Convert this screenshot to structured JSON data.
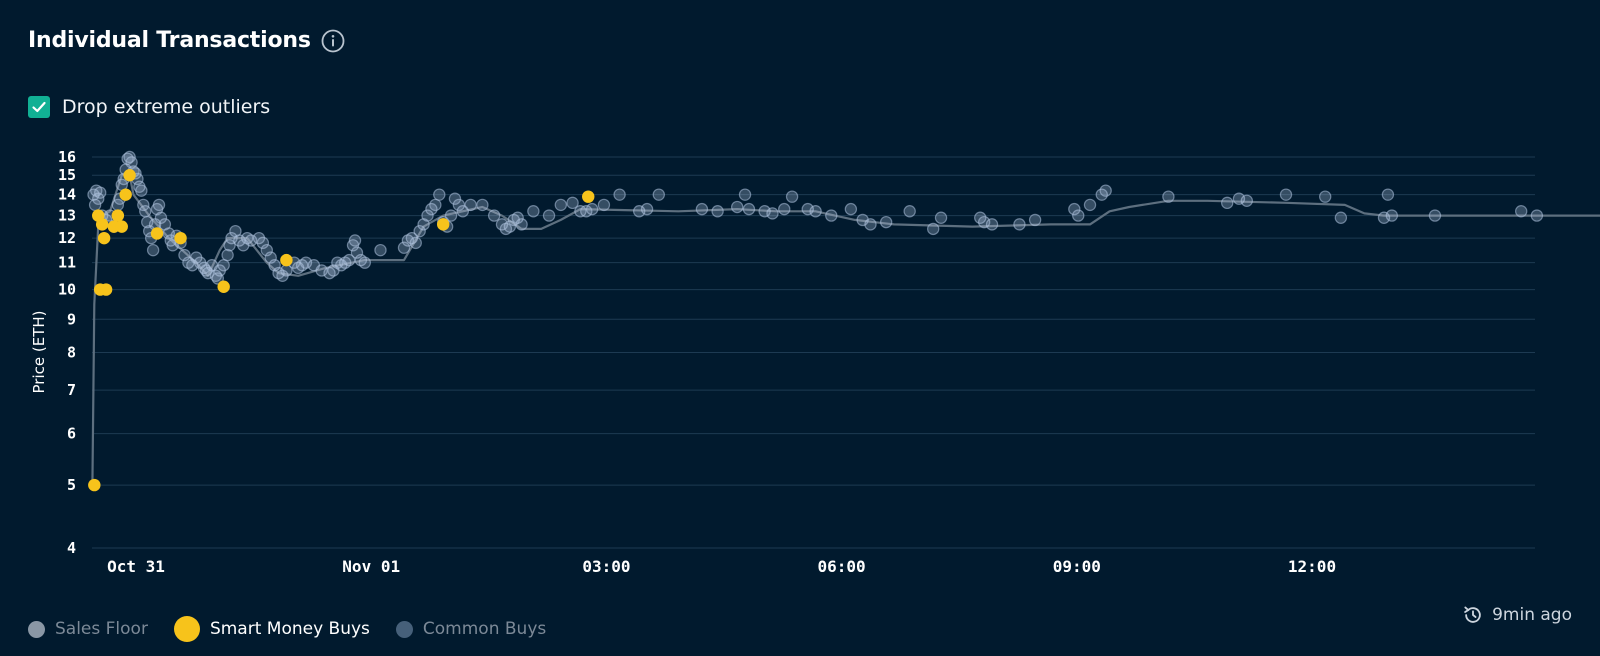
{
  "header": {
    "title": "Individual Transactions",
    "info_icon": "info-icon"
  },
  "options": {
    "drop_outliers_label": "Drop extreme outliers",
    "drop_outliers_checked": true
  },
  "legend": [
    {
      "label": "Sales Floor",
      "color": "#8a97a5",
      "state": "inactive"
    },
    {
      "label": "Smart Money Buys",
      "color": "#f7c31b",
      "state": "active"
    },
    {
      "label": "Common Buys",
      "color": "#46607a",
      "state": "inactive"
    }
  ],
  "status": {
    "updated_text": "9min ago",
    "icon": "history-clock-icon"
  },
  "colors": {
    "background": "#011a2e",
    "grid": "#1d3a52",
    "floor_line": "#5d6f7f",
    "common_fill": "#aec2de",
    "smart": "#f7c31b",
    "checkbox": "#11b094"
  },
  "chart_data": {
    "type": "scatter",
    "ylabel": "Price (ETH)",
    "y_scale": "log",
    "ylim": [
      4,
      16
    ],
    "y_ticks": [
      4,
      5,
      6,
      7,
      8,
      9,
      10,
      11,
      12,
      13,
      14,
      15,
      16
    ],
    "x_unit": "hours since Oct 31 00:00",
    "xlim": [
      -0.11,
      38.6
    ],
    "x_ticks": [
      {
        "label": "Oct 31",
        "x": 0
      },
      {
        "label": "Nov 01",
        "x": 6
      },
      {
        "label": "03:00",
        "x": 12
      },
      {
        "label": "06:00",
        "x": 18
      },
      {
        "label": "09:00",
        "x": 24
      },
      {
        "label": "12:00",
        "x": 30
      }
    ],
    "series": [
      {
        "name": "Sales Floor",
        "kind": "line",
        "points": [
          [
            -0.45,
            5
          ],
          [
            -0.4,
            9.5
          ],
          [
            -0.3,
            12.5
          ],
          [
            -0.2,
            13
          ],
          [
            0,
            13.2
          ],
          [
            0.3,
            15
          ],
          [
            0.5,
            15
          ],
          [
            0.6,
            14
          ],
          [
            1,
            13
          ],
          [
            1.5,
            12
          ],
          [
            2.2,
            11
          ],
          [
            2.5,
            10.5
          ],
          [
            2.8,
            11.5
          ],
          [
            3,
            12
          ],
          [
            3.5,
            12
          ],
          [
            4,
            11
          ],
          [
            4.3,
            10.6
          ],
          [
            4.8,
            10.5
          ],
          [
            5.5,
            10.8
          ],
          [
            6.5,
            11.1
          ],
          [
            7.5,
            11.1
          ],
          [
            8,
            12.5
          ],
          [
            8.5,
            13
          ],
          [
            9.5,
            13.4
          ],
          [
            10,
            13
          ],
          [
            10.5,
            12.4
          ],
          [
            11,
            12.4
          ],
          [
            11.5,
            12.8
          ],
          [
            12,
            13.3
          ],
          [
            14.5,
            13.2
          ],
          [
            16,
            13.3
          ],
          [
            17,
            13.2
          ],
          [
            18,
            13.2
          ],
          [
            19,
            12.8
          ],
          [
            20,
            12.6
          ],
          [
            22,
            12.5
          ],
          [
            24,
            12.6
          ],
          [
            25,
            12.6
          ],
          [
            25.5,
            13.2
          ],
          [
            26,
            13.4
          ],
          [
            27,
            13.7
          ],
          [
            28,
            13.7
          ],
          [
            30,
            13.6
          ],
          [
            31.5,
            13.5
          ],
          [
            32,
            13.1
          ],
          [
            32.5,
            13
          ],
          [
            38.6,
            13
          ]
        ]
      },
      {
        "name": "Common Buys",
        "kind": "scatter",
        "points": [
          [
            -0.42,
            14
          ],
          [
            -0.38,
            13.5
          ],
          [
            -0.35,
            14.2
          ],
          [
            -0.3,
            13.8
          ],
          [
            -0.25,
            14.1
          ],
          [
            -0.2,
            13
          ],
          [
            -0.1,
            12.8
          ],
          [
            0,
            13
          ],
          [
            0.1,
            12.5
          ],
          [
            0.2,
            13.5
          ],
          [
            0.25,
            13.8
          ],
          [
            0.3,
            14.5
          ],
          [
            0.35,
            14.8
          ],
          [
            0.4,
            15.3
          ],
          [
            0.45,
            15.9
          ],
          [
            0.5,
            16
          ],
          [
            0.55,
            15.7
          ],
          [
            0.6,
            15.2
          ],
          [
            0.65,
            15.1
          ],
          [
            0.7,
            14.8
          ],
          [
            0.75,
            14.4
          ],
          [
            0.8,
            14.2
          ],
          [
            0.85,
            13.5
          ],
          [
            0.9,
            13.2
          ],
          [
            0.95,
            12.7
          ],
          [
            1,
            12.3
          ],
          [
            1.05,
            12
          ],
          [
            1.1,
            11.5
          ],
          [
            1.15,
            12.6
          ],
          [
            1.2,
            13.3
          ],
          [
            1.25,
            13.5
          ],
          [
            1.3,
            12.9
          ],
          [
            1.4,
            12.6
          ],
          [
            1.5,
            12.2
          ],
          [
            1.55,
            11.9
          ],
          [
            1.6,
            11.7
          ],
          [
            1.7,
            12.1
          ],
          [
            1.8,
            11.8
          ],
          [
            1.9,
            11.3
          ],
          [
            2,
            11
          ],
          [
            2.1,
            10.9
          ],
          [
            2.2,
            11.2
          ],
          [
            2.3,
            11
          ],
          [
            2.4,
            10.8
          ],
          [
            2.45,
            10.7
          ],
          [
            2.5,
            10.6
          ],
          [
            2.6,
            10.9
          ],
          [
            2.7,
            10.5
          ],
          [
            2.75,
            10.4
          ],
          [
            2.8,
            10.7
          ],
          [
            2.9,
            10.9
          ],
          [
            3,
            11.3
          ],
          [
            3.05,
            11.7
          ],
          [
            3.1,
            12
          ],
          [
            3.2,
            12.3
          ],
          [
            3.3,
            11.9
          ],
          [
            3.4,
            11.7
          ],
          [
            3.5,
            12
          ],
          [
            3.6,
            11.9
          ],
          [
            3.8,
            12
          ],
          [
            3.9,
            11.8
          ],
          [
            4,
            11.5
          ],
          [
            4.1,
            11.2
          ],
          [
            4.2,
            10.9
          ],
          [
            4.3,
            10.6
          ],
          [
            4.4,
            10.5
          ],
          [
            4.5,
            10.7
          ],
          [
            4.7,
            11
          ],
          [
            4.8,
            10.8
          ],
          [
            4.9,
            10.9
          ],
          [
            5,
            11
          ],
          [
            5.2,
            10.9
          ],
          [
            5.4,
            10.7
          ],
          [
            5.6,
            10.6
          ],
          [
            5.7,
            10.7
          ],
          [
            5.8,
            11
          ],
          [
            5.9,
            10.9
          ],
          [
            6,
            11
          ],
          [
            6.1,
            11.1
          ],
          [
            6.2,
            11.7
          ],
          [
            6.25,
            11.9
          ],
          [
            6.3,
            11.4
          ],
          [
            6.4,
            11.1
          ],
          [
            6.5,
            11
          ],
          [
            6.9,
            11.5
          ],
          [
            7.5,
            11.6
          ],
          [
            7.6,
            11.9
          ],
          [
            7.7,
            12
          ],
          [
            7.8,
            11.8
          ],
          [
            7.9,
            12.3
          ],
          [
            8,
            12.6
          ],
          [
            8.1,
            13
          ],
          [
            8.2,
            13.3
          ],
          [
            8.3,
            13.5
          ],
          [
            8.4,
            14
          ],
          [
            8.5,
            12.7
          ],
          [
            8.6,
            12.5
          ],
          [
            8.7,
            13
          ],
          [
            8.8,
            13.8
          ],
          [
            8.9,
            13.5
          ],
          [
            9,
            13.2
          ],
          [
            9.2,
            13.5
          ],
          [
            9.5,
            13.5
          ],
          [
            9.8,
            13
          ],
          [
            10,
            12.6
          ],
          [
            10.1,
            12.4
          ],
          [
            10.2,
            12.5
          ],
          [
            10.3,
            12.8
          ],
          [
            10.4,
            12.9
          ],
          [
            10.5,
            12.6
          ],
          [
            10.8,
            13.2
          ],
          [
            11.2,
            13
          ],
          [
            11.5,
            13.5
          ],
          [
            11.8,
            13.6
          ],
          [
            12,
            13.2
          ],
          [
            12.15,
            13.2
          ],
          [
            12.3,
            13.3
          ],
          [
            12.6,
            13.5
          ],
          [
            13,
            14
          ],
          [
            13.5,
            13.2
          ],
          [
            13.7,
            13.3
          ],
          [
            14,
            14
          ],
          [
            15.1,
            13.3
          ],
          [
            15.5,
            13.2
          ],
          [
            16,
            13.4
          ],
          [
            16.2,
            14
          ],
          [
            16.3,
            13.3
          ],
          [
            16.7,
            13.2
          ],
          [
            16.9,
            13.1
          ],
          [
            17.2,
            13.3
          ],
          [
            17.4,
            13.9
          ],
          [
            17.8,
            13.3
          ],
          [
            18,
            13.2
          ],
          [
            18.4,
            13
          ],
          [
            18.9,
            13.3
          ],
          [
            19.2,
            12.8
          ],
          [
            19.4,
            12.6
          ],
          [
            19.8,
            12.7
          ],
          [
            20.4,
            13.2
          ],
          [
            21,
            12.4
          ],
          [
            21.2,
            12.9
          ],
          [
            22.2,
            12.9
          ],
          [
            22.3,
            12.7
          ],
          [
            22.5,
            12.6
          ],
          [
            23.2,
            12.6
          ],
          [
            23.6,
            12.8
          ],
          [
            24.6,
            13.3
          ],
          [
            24.7,
            13
          ],
          [
            25,
            13.5
          ],
          [
            25.3,
            14
          ],
          [
            25.4,
            14.2
          ],
          [
            27,
            13.9
          ],
          [
            28.5,
            13.6
          ],
          [
            28.8,
            13.8
          ],
          [
            29,
            13.7
          ],
          [
            30,
            14
          ],
          [
            31,
            13.9
          ],
          [
            31.4,
            12.9
          ],
          [
            32.5,
            12.9
          ],
          [
            32.6,
            14
          ],
          [
            32.7,
            13
          ],
          [
            33.8,
            13
          ],
          [
            36,
            13.2
          ],
          [
            36.4,
            13
          ]
        ]
      },
      {
        "name": "Smart Money Buys",
        "kind": "scatter",
        "points": [
          [
            -0.4,
            5
          ],
          [
            -0.3,
            13
          ],
          [
            -0.25,
            10
          ],
          [
            -0.2,
            12.6
          ],
          [
            -0.15,
            12
          ],
          [
            -0.1,
            10
          ],
          [
            0.1,
            12.5
          ],
          [
            0.2,
            13
          ],
          [
            0.3,
            12.5
          ],
          [
            0.4,
            14
          ],
          [
            0.5,
            15
          ],
          [
            1.2,
            12.2
          ],
          [
            1.8,
            12
          ],
          [
            2.9,
            10.1
          ],
          [
            4.5,
            11.1
          ],
          [
            8.5,
            12.6
          ],
          [
            12.2,
            13.9
          ]
        ]
      }
    ]
  }
}
